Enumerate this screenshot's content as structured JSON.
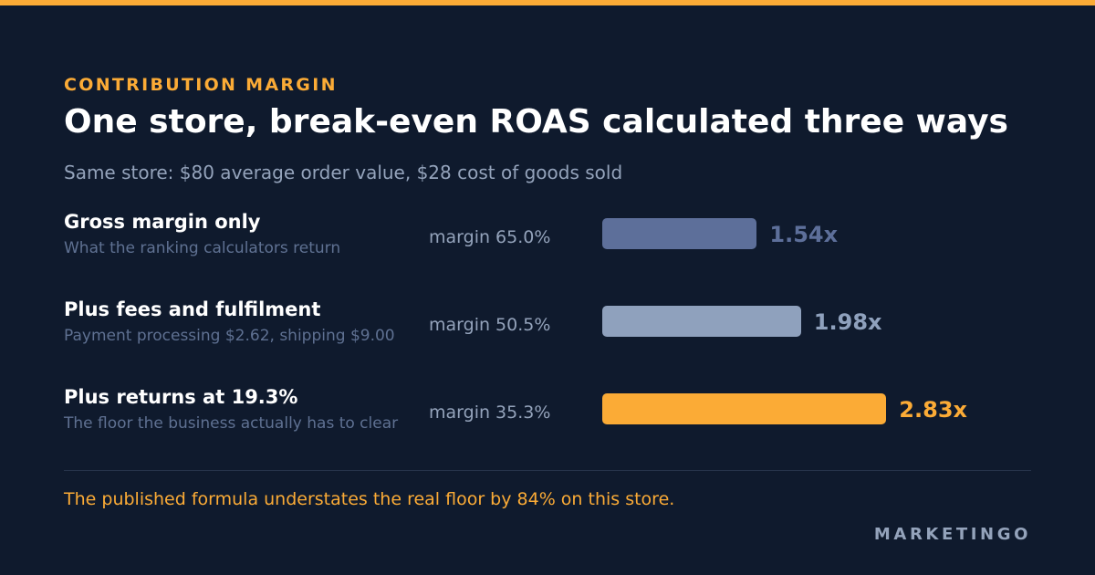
{
  "header": {
    "eyebrow": "CONTRIBUTION MARGIN",
    "title": "One store, break-even ROAS calculated three ways",
    "subtitle": "Same store: $80 average order value, $28 cost of goods sold"
  },
  "chart_data": {
    "type": "bar",
    "orientation": "horizontal",
    "categories": [
      "Gross margin only",
      "Plus fees and fulfilment",
      "Plus returns at 19.3%"
    ],
    "notes": [
      "What the ranking calculators return",
      "Payment processing $2.62, shipping $9.00",
      "The floor the business actually has to clear"
    ],
    "margins": [
      "margin 65.0%",
      "margin 50.5%",
      "margin 35.3%"
    ],
    "values": [
      1.54,
      1.98,
      2.83
    ],
    "value_labels": [
      "1.54x",
      "1.98x",
      "2.83x"
    ],
    "colors": [
      "#5d6f9a",
      "#8fa1bd",
      "#fbab36"
    ]
  },
  "footer": {
    "note": "The published formula understates the real floor by 84% on this store.",
    "brand": "MARKETINGO"
  },
  "colors": {
    "background": "#0f1a2d",
    "accent": "#fbab36",
    "muted": "#94a3bb"
  }
}
